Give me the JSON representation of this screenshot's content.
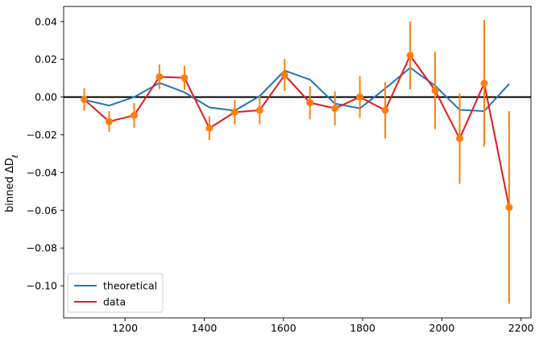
{
  "chart_data": {
    "type": "line",
    "title": "",
    "xlabel": "",
    "ylabel": "binned ΔD",
    "ylabel_subscript": "ℓ",
    "xlim": [
      1045,
      2225
    ],
    "ylim": [
      -0.117,
      0.048
    ],
    "xticks": [
      1200,
      1400,
      1600,
      1800,
      2000,
      2200
    ],
    "xtick_labels": [
      "1200",
      "1400",
      "1600",
      "1800",
      "2000",
      "2200"
    ],
    "yticks": [
      0.04,
      0.02,
      0.0,
      -0.02,
      -0.04,
      -0.06,
      -0.08,
      -0.1
    ],
    "ytick_labels": [
      "0.04",
      "0.02",
      "0.00",
      "−0.02",
      "−0.04",
      "−0.06",
      "−0.08",
      "−0.10"
    ],
    "grid": false,
    "zero_line": 0,
    "legend_position": "lower-left",
    "x": [
      1097,
      1160,
      1223,
      1287,
      1350,
      1413,
      1477,
      1540,
      1603,
      1667,
      1730,
      1793,
      1857,
      1920,
      1983,
      2045,
      2107,
      2170
    ],
    "series": [
      {
        "name": "theoretical",
        "color": "#1f77b4",
        "values": [
          -0.0015,
          -0.0045,
          0.0,
          0.0075,
          0.0025,
          -0.0055,
          -0.0072,
          0.0005,
          0.014,
          0.0092,
          -0.0035,
          -0.006,
          0.0045,
          0.0155,
          0.006,
          -0.0068,
          -0.0075,
          0.007
        ]
      },
      {
        "name": "data",
        "color": "#e41a1c",
        "marker_color": "#ff7f0e",
        "values": [
          -0.0013,
          -0.013,
          -0.0097,
          0.0107,
          0.0102,
          -0.0165,
          -0.008,
          -0.007,
          0.0117,
          -0.003,
          -0.006,
          0.0,
          -0.007,
          0.022,
          0.0035,
          -0.022,
          0.0073,
          -0.0585
        ],
        "errors": [
          0.006,
          0.0055,
          0.0065,
          0.0065,
          0.0063,
          0.0063,
          0.0065,
          0.0075,
          0.0085,
          0.0088,
          0.009,
          0.011,
          0.015,
          0.018,
          0.0205,
          0.024,
          0.0335,
          0.051
        ]
      }
    ]
  }
}
